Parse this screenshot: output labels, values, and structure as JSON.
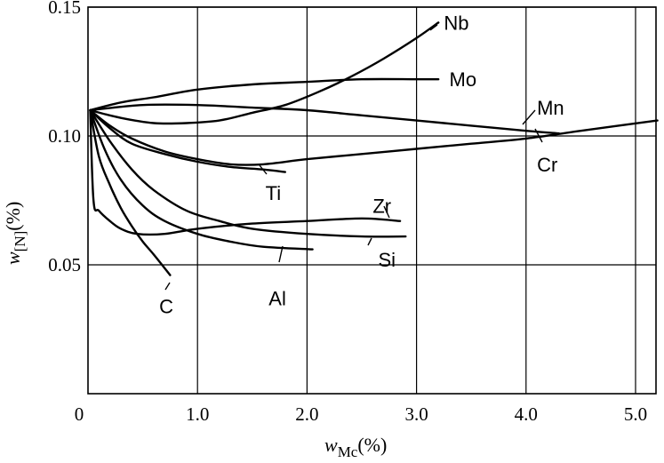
{
  "chart_data": {
    "type": "line",
    "xlabel": {
      "symbol": "w",
      "subscript": "Mc",
      "unit": "(%)"
    },
    "ylabel": {
      "symbol": "w",
      "subscript": "[N]",
      "unit": "(%)"
    },
    "xlim": [
      0,
      5.2
    ],
    "ylim": [
      0,
      0.15
    ],
    "xticks": [
      {
        "value": 0,
        "label": "0"
      },
      {
        "value": 1.0,
        "label": "1.0"
      },
      {
        "value": 2.0,
        "label": "2.0"
      },
      {
        "value": 3.0,
        "label": "3.0"
      },
      {
        "value": 4.0,
        "label": "4.0"
      },
      {
        "value": 5.0,
        "label": "5.0"
      }
    ],
    "yticks": [
      {
        "value": 0.05,
        "label": "0.05"
      },
      {
        "value": 0.1,
        "label": "0.10"
      },
      {
        "value": 0.15,
        "label": "0.15"
      }
    ],
    "grid": true,
    "series": [
      {
        "name": "Nb",
        "x": [
          0.02,
          0.3,
          0.6,
          0.9,
          1.2,
          1.5,
          1.8,
          2.1,
          2.4,
          2.7,
          3.0,
          3.2
        ],
        "y": [
          0.11,
          0.107,
          0.105,
          0.105,
          0.106,
          0.109,
          0.112,
          0.117,
          0.123,
          0.13,
          0.138,
          0.144
        ]
      },
      {
        "name": "Mo",
        "x": [
          0.02,
          0.3,
          0.6,
          1.0,
          1.5,
          2.0,
          2.5,
          3.0,
          3.2
        ],
        "y": [
          0.11,
          0.113,
          0.115,
          0.118,
          0.12,
          0.121,
          0.122,
          0.122,
          0.122
        ]
      },
      {
        "name": "Mn",
        "x": [
          0.02,
          0.5,
          1.0,
          1.5,
          2.0,
          2.5,
          3.0,
          3.5,
          4.0,
          4.3
        ],
        "y": [
          0.11,
          0.112,
          0.112,
          0.111,
          0.11,
          0.108,
          0.106,
          0.104,
          0.102,
          0.101
        ]
      },
      {
        "name": "Cr",
        "x": [
          0.02,
          0.2,
          0.4,
          0.7,
          1.0,
          1.3,
          1.6,
          2.0,
          2.5,
          3.0,
          3.5,
          4.0,
          4.5,
          5.2
        ],
        "y": [
          0.11,
          0.104,
          0.099,
          0.094,
          0.091,
          0.089,
          0.089,
          0.091,
          0.093,
          0.095,
          0.097,
          0.099,
          0.102,
          0.106
        ]
      },
      {
        "name": "Ti",
        "x": [
          0.02,
          0.2,
          0.4,
          0.7,
          1.0,
          1.3,
          1.6,
          1.8
        ],
        "y": [
          0.11,
          0.103,
          0.097,
          0.093,
          0.09,
          0.088,
          0.087,
          0.086
        ]
      },
      {
        "name": "Zr",
        "x": [
          0.02,
          0.05,
          0.1,
          0.2,
          0.3,
          0.45,
          0.7,
          1.0,
          1.5,
          2.0,
          2.5,
          2.85
        ],
        "y": [
          0.11,
          0.075,
          0.071,
          0.067,
          0.064,
          0.062,
          0.062,
          0.064,
          0.066,
          0.067,
          0.068,
          0.067
        ]
      },
      {
        "name": "Si",
        "x": [
          0.02,
          0.2,
          0.4,
          0.6,
          0.9,
          1.2,
          1.5,
          2.0,
          2.5,
          2.9
        ],
        "y": [
          0.11,
          0.098,
          0.087,
          0.079,
          0.071,
          0.067,
          0.064,
          0.062,
          0.061,
          0.061
        ]
      },
      {
        "name": "Al",
        "x": [
          0.02,
          0.15,
          0.3,
          0.5,
          0.7,
          1.0,
          1.3,
          1.6,
          2.05
        ],
        "y": [
          0.11,
          0.095,
          0.083,
          0.073,
          0.067,
          0.062,
          0.059,
          0.057,
          0.056
        ]
      },
      {
        "name": "C",
        "x": [
          0.02,
          0.1,
          0.2,
          0.3,
          0.4,
          0.5,
          0.6,
          0.75
        ],
        "y": [
          0.11,
          0.092,
          0.081,
          0.072,
          0.065,
          0.059,
          0.054,
          0.046
        ]
      }
    ],
    "labels": [
      {
        "text": "Nb",
        "x": 3.25,
        "y": 0.144
      },
      {
        "text": "Mo",
        "x": 3.3,
        "y": 0.122
      },
      {
        "text": "Mn",
        "x": 4.1,
        "y": 0.111
      },
      {
        "text": "Cr",
        "x": 4.1,
        "y": 0.089
      },
      {
        "text": "Ti",
        "x": 1.62,
        "y": 0.078
      },
      {
        "text": "Zr",
        "x": 2.6,
        "y": 0.073
      },
      {
        "text": "Si",
        "x": 2.65,
        "y": 0.052
      },
      {
        "text": "Al",
        "x": 1.65,
        "y": 0.037
      },
      {
        "text": "C",
        "x": 0.65,
        "y": 0.034
      }
    ]
  }
}
